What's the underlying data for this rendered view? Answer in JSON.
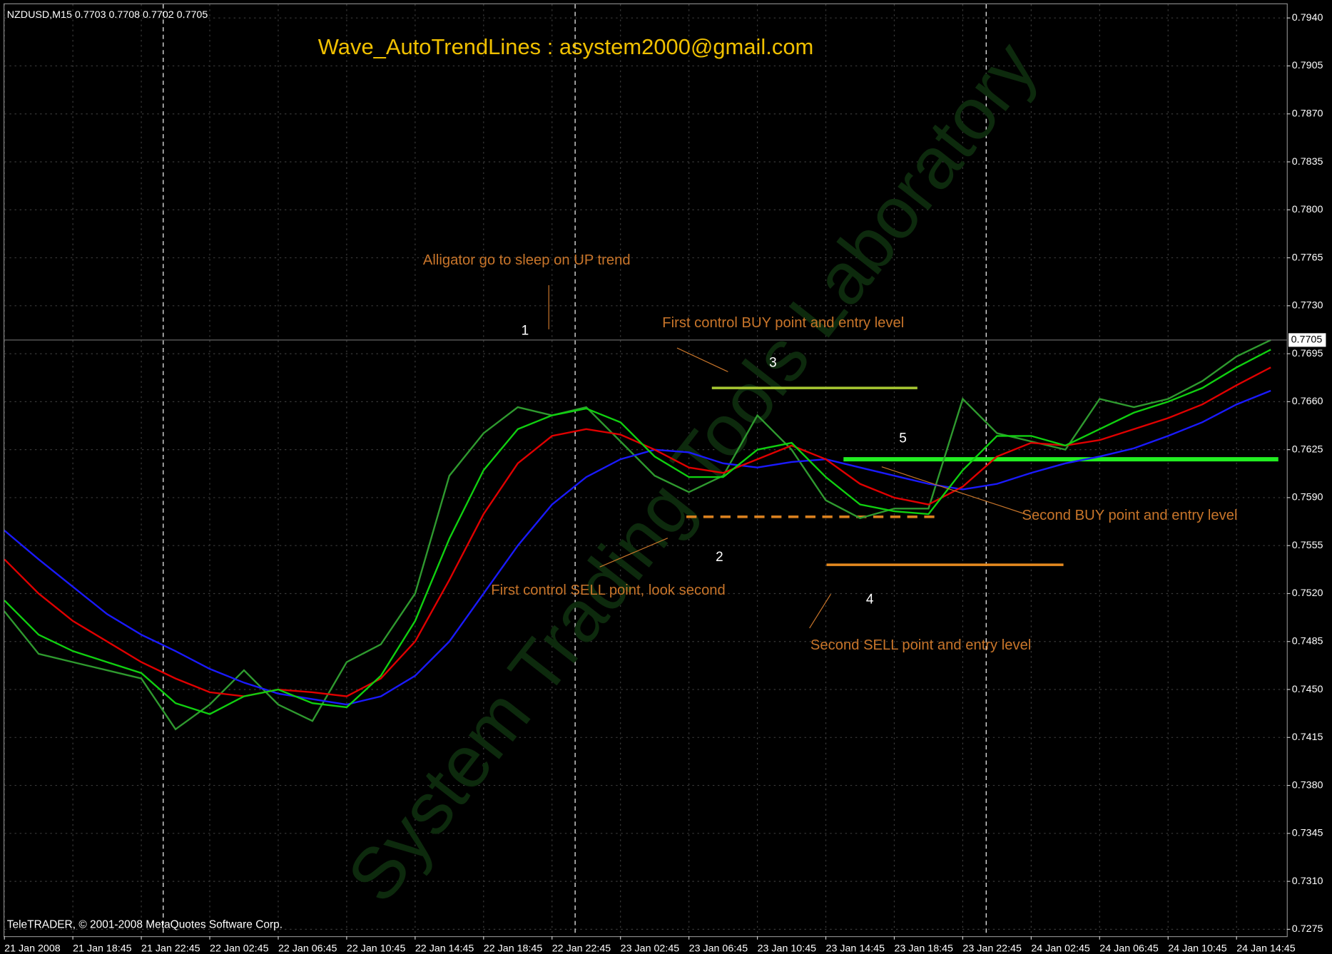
{
  "header": "NZDUSD,M15  0.7703 0.7708 0.7702 0.7705",
  "copyright": "TeleTRADER, © 2001-2008 MetaQuotes Software Corp.",
  "watermark": "System Trading Tools Laboratory",
  "chart_data": {
    "type": "line",
    "title": "Wave_AutoTrendLines  :  asystem2000@gmail.com",
    "annotations": [
      "Alligator go to sleep on UP trend",
      "First  control BUY point and entry level",
      "Second  BUY point and entry level",
      "First  control SELL point, look second",
      "Second  SELL point and entry level"
    ],
    "markers": [
      "1",
      "2",
      "3",
      "4",
      "5"
    ],
    "categories": [
      "21 Jan 2008",
      null,
      "21 Jan 18:45",
      null,
      "21 Jan 22:45",
      null,
      "22 Jan 02:45",
      null,
      "22 Jan 06:45",
      null,
      "22 Jan 10:45",
      null,
      "22 Jan 14:45",
      null,
      "22 Jan 18:45",
      null,
      "22 Jan 22:45",
      null,
      "23 Jan 02:45",
      null,
      "23 Jan 06:45",
      null,
      "23 Jan 10:45",
      null,
      "23 Jan 14:45",
      null,
      "23 Jan 18:45",
      null,
      "23 Jan 22:45",
      null,
      "24 Jan 02:45",
      null,
      "24 Jan 06:45",
      null,
      "24 Jan 10:45",
      null,
      "24 Jan 14:45",
      null
    ],
    "series": [
      {
        "color": "#2f9a2f",
        "values": [
          0.7507,
          0.7476,
          0.747,
          0.7464,
          0.7458,
          0.7421,
          0.7439,
          0.7464,
          0.7439,
          0.7427,
          0.747,
          0.7483,
          0.752,
          0.7606,
          0.7637,
          0.7656,
          0.765,
          0.7656,
          0.7631,
          0.7606,
          0.7594,
          0.7606,
          0.765,
          0.7625,
          0.7588,
          0.7575,
          0.7582,
          0.7582,
          0.7662,
          0.7637,
          0.7631,
          0.7625,
          0.7662,
          0.7656,
          0.7662,
          0.7675,
          0.7693,
          0.7705
        ]
      },
      {
        "color": "#1a1aff",
        "values": [
          0.7566,
          0.7545,
          0.7525,
          0.7505,
          0.749,
          0.7478,
          0.7465,
          0.7455,
          0.7447,
          0.7443,
          0.7439,
          0.7445,
          0.746,
          0.7485,
          0.752,
          0.7555,
          0.7585,
          0.7605,
          0.7618,
          0.7625,
          0.7623,
          0.7615,
          0.7612,
          0.7616,
          0.7618,
          0.7612,
          0.7606,
          0.76,
          0.7596,
          0.76,
          0.7608,
          0.7615,
          0.762,
          0.7626,
          0.7635,
          0.7645,
          0.7658,
          0.7668
        ]
      },
      {
        "color": "#e00000",
        "values": [
          0.7545,
          0.752,
          0.75,
          0.7485,
          0.747,
          0.7458,
          0.7448,
          0.7445,
          0.745,
          0.7448,
          0.7445,
          0.7458,
          0.7485,
          0.753,
          0.7578,
          0.7615,
          0.7635,
          0.764,
          0.7636,
          0.7625,
          0.7612,
          0.7608,
          0.7618,
          0.7628,
          0.7618,
          0.76,
          0.759,
          0.7585,
          0.7598,
          0.762,
          0.763,
          0.7628,
          0.7632,
          0.764,
          0.7648,
          0.7658,
          0.7672,
          0.7685
        ]
      },
      {
        "color": "#10d010",
        "values": [
          0.7515,
          0.749,
          0.7478,
          0.747,
          0.7462,
          0.744,
          0.7432,
          0.7445,
          0.745,
          0.744,
          0.7437,
          0.746,
          0.75,
          0.756,
          0.761,
          0.764,
          0.765,
          0.7655,
          0.7645,
          0.762,
          0.7605,
          0.7605,
          0.7625,
          0.763,
          0.7605,
          0.7585,
          0.758,
          0.7578,
          0.761,
          0.7635,
          0.7635,
          0.7628,
          0.764,
          0.7652,
          0.766,
          0.767,
          0.7685,
          0.7698
        ]
      }
    ],
    "levels": [
      {
        "value": 0.767,
        "color": "#a8c832"
      },
      {
        "value": 0.7576,
        "color": "#d9801f",
        "dashed": true
      },
      {
        "value": 0.7541,
        "color": "#e58a1f"
      },
      {
        "value": 0.7618,
        "color": "#22ee22"
      }
    ],
    "current_price": 0.7705,
    "ylim": [
      0.727,
      0.795
    ],
    "yticks": [
      {
        "value": 0.7275,
        "label": "0.7275"
      },
      {
        "value": 0.731,
        "label": "0.7310"
      },
      {
        "value": 0.7345,
        "label": "0.7345"
      },
      {
        "value": 0.738,
        "label": "0.7380"
      },
      {
        "value": 0.7415,
        "label": "0.7415"
      },
      {
        "value": 0.745,
        "label": "0.7450"
      },
      {
        "value": 0.7485,
        "label": "0.7485"
      },
      {
        "value": 0.752,
        "label": "0.7520"
      },
      {
        "value": 0.7555,
        "label": "0.7555"
      },
      {
        "value": 0.759,
        "label": "0.7590"
      },
      {
        "value": 0.7625,
        "label": "0.7625"
      },
      {
        "value": 0.766,
        "label": "0.7660"
      },
      {
        "value": 0.7695,
        "label": "0.7695"
      },
      {
        "value": 0.773,
        "label": "0.7730"
      },
      {
        "value": 0.7765,
        "label": "0.7765"
      },
      {
        "value": 0.78,
        "label": "0.7800"
      },
      {
        "value": 0.7835,
        "label": "0.7835"
      },
      {
        "value": 0.787,
        "label": "0.7870"
      },
      {
        "value": 0.7905,
        "label": "0.7905"
      },
      {
        "value": 0.794,
        "label": "0.7940"
      }
    ],
    "grid": true
  }
}
